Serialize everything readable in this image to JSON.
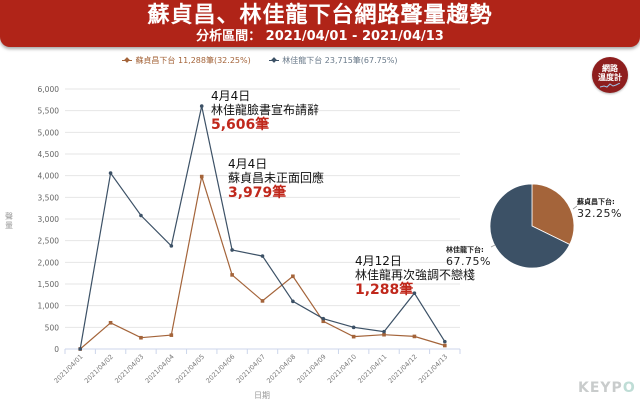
{
  "header": {
    "title": "蘇貞昌、林佳龍下台網路聲量趨勢",
    "subtitle": "分析區間： 2021/04/01 - 2021/04/13"
  },
  "legend": [
    {
      "label": "蘇貞昌下台 11,288筆(32.25%)",
      "color": "#A4643A"
    },
    {
      "label": "林佳龍下台 23,715筆(67.75%)",
      "color": "#3C5166"
    }
  ],
  "logo": {
    "line1": "網路",
    "line2": "溫度計"
  },
  "annotations": [
    {
      "date": "4月4日",
      "text": "林佳龍臉書宣布請辭",
      "value": "5,606筆"
    },
    {
      "date": "4月4日",
      "text": "蘇貞昌未正面回應",
      "value": "3,979筆"
    },
    {
      "date": "4月12日",
      "text": "林佳龍再次強調不戀棧",
      "value": "1,288筆"
    }
  ],
  "pie": {
    "slices": [
      {
        "label": "蘇貞昌下台:",
        "pct_label": "32.25%",
        "value": 32.25,
        "color": "#A4643A"
      },
      {
        "label": "林佳龍下台:",
        "pct_label": "67.75%",
        "value": 67.75,
        "color": "#3C5166"
      }
    ]
  },
  "watermark": {
    "text_a": "KEYP",
    "text_b": "O"
  },
  "chart_data": [
    {
      "type": "line",
      "title": "蘇貞昌、林佳龍下台網路聲量趨勢",
      "subtitle": "分析區間： 2021/04/01 - 2021/04/13",
      "xlabel": "日期",
      "ylabel": "聲量",
      "ylim": [
        0,
        6000
      ],
      "yticks": [
        0,
        500,
        1000,
        1500,
        2000,
        2500,
        3000,
        3500,
        4000,
        4500,
        5000,
        5500,
        6000
      ],
      "ytick_labels": [
        "0",
        "500",
        "1,000",
        "1,500",
        "2,000",
        "2,500",
        "3,000",
        "3,500",
        "4,000",
        "4,500",
        "5,000",
        "5,500",
        "6,000"
      ],
      "grid": true,
      "legend_position": "top",
      "categories": [
        "2021/04/01",
        "2021/04/02",
        "2021/04/03",
        "2021/04/04",
        "2021/04/05",
        "2021/04/06",
        "2021/04/07",
        "2021/04/08",
        "2021/04/09",
        "2021/04/10",
        "2021/04/11",
        "2021/04/12",
        "2021/04/13"
      ],
      "series": [
        {
          "name": "蘇貞昌下台",
          "total": "11,288筆",
          "share": "32.25%",
          "color": "#A4643A",
          "values": [
            0,
            605,
            260,
            320,
            3979,
            1710,
            1110,
            1678,
            640,
            285,
            330,
            290,
            80
          ]
        },
        {
          "name": "林佳龍下台",
          "total": "23,715筆",
          "share": "67.75%",
          "color": "#3C5166",
          "values": [
            0,
            4060,
            3080,
            2380,
            5606,
            2285,
            2145,
            1100,
            700,
            500,
            400,
            1288,
            170
          ]
        }
      ],
      "annotations": [
        {
          "x": "2021/04/05",
          "series": "林佳龍下台",
          "text": "4月4日 林佳龍臉書宣布請辭 5,606筆"
        },
        {
          "x": "2021/04/05",
          "series": "蘇貞昌下台",
          "text": "4月4日 蘇貞昌未正面回應 3,979筆"
        },
        {
          "x": "2021/04/12",
          "series": "林佳龍下台",
          "text": "4月12日 林佳龍再次強調不戀棧 1,288筆"
        }
      ]
    },
    {
      "type": "pie",
      "categories": [
        "蘇貞昌下台",
        "林佳龍下台"
      ],
      "values": [
        32.25,
        67.75
      ],
      "labels": [
        "蘇貞昌下台: 32.25%",
        "林佳龍下台: 67.75%"
      ]
    }
  ]
}
